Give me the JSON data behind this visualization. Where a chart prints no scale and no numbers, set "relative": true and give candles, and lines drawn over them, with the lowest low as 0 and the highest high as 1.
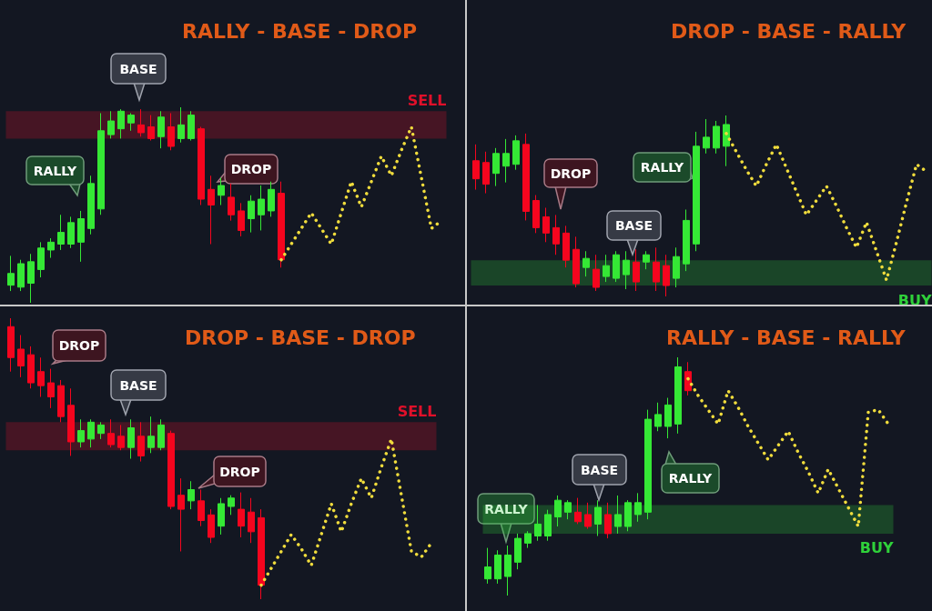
{
  "chart_data": [
    {
      "type": "candlestick",
      "relative": true,
      "title": "RALLY - BASE - DROP",
      "tick_labels": false,
      "grid": false,
      "categories": [
        null,
        null,
        null,
        null,
        null,
        null,
        null,
        null,
        null,
        null,
        null,
        null,
        null,
        null,
        null,
        null,
        null,
        null,
        null,
        null,
        null,
        null,
        null,
        null,
        null,
        null,
        null,
        null,
        null,
        null,
        null,
        null,
        null,
        null,
        null,
        null,
        null,
        null,
        null,
        null,
        null,
        null,
        null,
        null
      ],
      "ohlc": [
        [
          0.09,
          0.24,
          0.06,
          0.15
        ],
        [
          0.08,
          0.22,
          0.06,
          0.2
        ],
        [
          0.1,
          0.25,
          0,
          0.21
        ],
        [
          0.17,
          0.31,
          0.13,
          0.28
        ],
        [
          0.27,
          0.33,
          0.23,
          0.31
        ],
        [
          0.3,
          0.45,
          0.27,
          0.36
        ],
        [
          0.3,
          0.44,
          0.28,
          0.41
        ],
        [
          0.31,
          0.47,
          0.21,
          0.43
        ],
        [
          0.38,
          0.65,
          0.35,
          0.61
        ],
        [
          0.48,
          0.97,
          0.45,
          0.88
        ],
        [
          0.86,
          0.98,
          0.84,
          0.93
        ],
        [
          0.89,
          0.99,
          0.84,
          0.98
        ],
        [
          0.92,
          0.97,
          0.88,
          0.96
        ],
        [
          0.91,
          0.99,
          0.85,
          0.87
        ],
        [
          0.9,
          0.96,
          0.83,
          0.84
        ],
        [
          0.85,
          0.98,
          0.79,
          0.95
        ],
        [
          0.9,
          0.97,
          0.78,
          0.8
        ],
        [
          0.84,
          1.0,
          0.82,
          0.91
        ],
        [
          0.84,
          0.98,
          0.83,
          0.96
        ],
        [
          0.89,
          0.9,
          0.5,
          0.53
        ],
        [
          0.58,
          0.65,
          0.3,
          0.5
        ],
        [
          0.55,
          0.64,
          0.5,
          0.6
        ],
        [
          0.54,
          0.61,
          0.42,
          0.45
        ],
        [
          0.47,
          0.51,
          0.34,
          0.37
        ],
        [
          0.43,
          0.55,
          0.36,
          0.52
        ],
        [
          0.45,
          0.6,
          0.37,
          0.53
        ],
        [
          0.47,
          0.62,
          0.44,
          0.58
        ],
        [
          0.56,
          0.62,
          0.18,
          0.22
        ],
        null,
        null,
        null,
        null,
        null,
        null,
        null,
        null,
        null,
        null,
        null,
        null,
        null,
        null,
        null,
        null
      ],
      "series": [
        {
          "type": "line",
          "color": "#f0dc3c",
          "line_style": "dotted",
          "marker": "none",
          "values": [
            null,
            null,
            null,
            null,
            null,
            null,
            null,
            null,
            null,
            null,
            null,
            null,
            null,
            null,
            null,
            null,
            null,
            null,
            null,
            null,
            null,
            null,
            null,
            null,
            null,
            null,
            null,
            0.22,
            0.3,
            0.38,
            0.46,
            0.38,
            0.3,
            0.46,
            0.62,
            0.49,
            0.62,
            0.75,
            0.65,
            0.78,
            0.9,
            0.64,
            0.38,
            0.42
          ]
        }
      ],
      "bands": [
        {
          "axis": "y",
          "from": 0.84,
          "to": 0.98,
          "label": "SELL",
          "color": "#e0102a"
        }
      ],
      "annotations": [
        "RALLY",
        "BASE",
        "DROP"
      ]
    },
    {
      "type": "candlestick",
      "relative": true,
      "title": "DROP - BASE - RALLY",
      "tick_labels": false,
      "grid": false,
      "categories": [
        null,
        null,
        null,
        null,
        null,
        null,
        null,
        null,
        null,
        null,
        null,
        null,
        null,
        null,
        null,
        null,
        null,
        null,
        null,
        null,
        null,
        null,
        null,
        null,
        null,
        null,
        null,
        null,
        null,
        null,
        null,
        null,
        null,
        null,
        null,
        null,
        null,
        null,
        null,
        null,
        null,
        null,
        null,
        null,
        null,
        null
      ],
      "ohlc": [
        [
          0.75,
          0.84,
          0.59,
          0.65
        ],
        [
          0.74,
          0.8,
          0.57,
          0.62
        ],
        [
          0.68,
          0.82,
          0.61,
          0.79
        ],
        [
          0.72,
          0.87,
          0.63,
          0.79
        ],
        [
          0.73,
          0.89,
          0.7,
          0.86
        ],
        [
          0.84,
          0.9,
          0.42,
          0.47
        ],
        [
          0.53,
          0.56,
          0.35,
          0.38
        ],
        [
          0.44,
          0.49,
          0.3,
          0.35
        ],
        [
          0.38,
          0.45,
          0.23,
          0.29
        ],
        [
          0.35,
          0.39,
          0.16,
          0.2
        ],
        [
          0.26,
          0.33,
          0.05,
          0.07
        ],
        [
          0.16,
          0.25,
          0.11,
          0.21
        ],
        [
          0.15,
          0.23,
          0.03,
          0.05
        ],
        [
          0.11,
          0.23,
          0.08,
          0.17
        ],
        [
          0.1,
          0.25,
          0.08,
          0.23
        ],
        [
          0.12,
          0.25,
          0.04,
          0.2
        ],
        [
          0.19,
          0.26,
          0.03,
          0.08
        ],
        [
          0.19,
          0.25,
          0.15,
          0.23
        ],
        [
          0.19,
          0.27,
          0.03,
          0.08
        ],
        [
          0.17,
          0.23,
          0,
          0.06
        ],
        [
          0.1,
          0.27,
          0.05,
          0.22
        ],
        [
          0.18,
          0.48,
          0.14,
          0.42
        ],
        [
          0.29,
          0.91,
          0.25,
          0.83
        ],
        [
          0.82,
          0.98,
          0.79,
          0.88
        ],
        [
          0.82,
          0.97,
          0.79,
          0.94
        ],
        [
          0.83,
          1.0,
          0.72,
          0.95
        ],
        null,
        null,
        null,
        null,
        null,
        null,
        null,
        null,
        null,
        null,
        null,
        null,
        null,
        null,
        null,
        null,
        null,
        null,
        null,
        null
      ],
      "series": [
        {
          "type": "line",
          "color": "#f0dc3c",
          "line_style": "dotted",
          "marker": "none",
          "values": [
            null,
            null,
            null,
            null,
            null,
            null,
            null,
            null,
            null,
            null,
            null,
            null,
            null,
            null,
            null,
            null,
            null,
            null,
            null,
            null,
            null,
            null,
            null,
            null,
            null,
            0.9,
            0.8,
            0.7,
            0.61,
            0.73,
            0.84,
            0.71,
            0.58,
            0.45,
            0.53,
            0.61,
            0.5,
            0.38,
            0.27,
            0.41,
            0.25,
            0.09,
            0.3,
            0.52,
            0.73,
            0.69
          ]
        }
      ],
      "bands": [
        {
          "axis": "y",
          "from": 0.06,
          "to": 0.2,
          "label": "BUY",
          "color": "#2fd13a"
        }
      ],
      "annotations": [
        "DROP",
        "BASE",
        "RALLY"
      ]
    },
    {
      "type": "candlestick",
      "relative": true,
      "title": "DROP - BASE - DROP",
      "tick_labels": false,
      "grid": false,
      "categories": [
        null,
        null,
        null,
        null,
        null,
        null,
        null,
        null,
        null,
        null,
        null,
        null,
        null,
        null,
        null,
        null,
        null,
        null,
        null,
        null,
        null,
        null,
        null,
        null,
        null,
        null,
        null,
        null,
        null,
        null,
        null,
        null,
        null,
        null,
        null,
        null,
        null,
        null,
        null,
        null,
        null,
        null,
        null
      ],
      "ohlc": [
        [
          0.97,
          1.0,
          0.81,
          0.86
        ],
        [
          0.89,
          0.94,
          0.79,
          0.83
        ],
        [
          0.87,
          0.9,
          0.75,
          0.77
        ],
        [
          0.81,
          0.86,
          0.72,
          0.76
        ],
        [
          0.77,
          0.82,
          0.68,
          0.72
        ],
        [
          0.76,
          0.78,
          0.63,
          0.65
        ],
        [
          0.69,
          0.75,
          0.51,
          0.56
        ],
        [
          0.56,
          0.64,
          0.54,
          0.6
        ],
        [
          0.57,
          0.64,
          0.54,
          0.63
        ],
        [
          0.59,
          0.63,
          0.57,
          0.62
        ],
        [
          0.59,
          0.64,
          0.54,
          0.55
        ],
        [
          0.58,
          0.62,
          0.53,
          0.54
        ],
        [
          0.54,
          0.64,
          0.5,
          0.61
        ],
        [
          0.58,
          0.63,
          0.49,
          0.51
        ],
        [
          0.54,
          0.65,
          0.52,
          0.58
        ],
        [
          0.54,
          0.64,
          0.53,
          0.62
        ],
        [
          0.59,
          0.6,
          0.32,
          0.33
        ],
        [
          0.37,
          0.43,
          0.17,
          0.32
        ],
        [
          0.35,
          0.42,
          0.32,
          0.39
        ],
        [
          0.35,
          0.39,
          0.26,
          0.28
        ],
        [
          0.3,
          0.32,
          0.2,
          0.22
        ],
        [
          0.26,
          0.36,
          0.23,
          0.34
        ],
        [
          0.33,
          0.37,
          0.3,
          0.36
        ],
        [
          0.32,
          0.38,
          0.22,
          0.26
        ],
        [
          0.31,
          0.36,
          0.2,
          0.24
        ],
        [
          0.29,
          0.32,
          0,
          0.05
        ],
        null,
        null,
        null,
        null,
        null,
        null,
        null,
        null,
        null,
        null,
        null,
        null,
        null,
        null,
        null,
        null,
        null
      ],
      "series": [
        {
          "type": "line",
          "color": "#f0dc3c",
          "line_style": "dotted",
          "marker": "none",
          "values": [
            null,
            null,
            null,
            null,
            null,
            null,
            null,
            null,
            null,
            null,
            null,
            null,
            null,
            null,
            null,
            null,
            null,
            null,
            null,
            null,
            null,
            null,
            null,
            null,
            null,
            0.05,
            0.11,
            0.17,
            0.23,
            0.18,
            0.12,
            0.23,
            0.34,
            0.24,
            0.34,
            0.43,
            0.36,
            0.47,
            0.57,
            0.37,
            0.17,
            0.15,
            0.2
          ]
        }
      ],
      "bands": [
        {
          "axis": "y",
          "from": 0.53,
          "to": 0.63,
          "label": "SELL",
          "color": "#e0102a"
        }
      ],
      "annotations": [
        "DROP",
        "BASE",
        "DROP"
      ]
    },
    {
      "type": "candlestick",
      "relative": true,
      "title": "RALLY - BASE - RALLY",
      "tick_labels": false,
      "grid": false,
      "categories": [
        null,
        null,
        null,
        null,
        null,
        null,
        null,
        null,
        null,
        null,
        null,
        null,
        null,
        null,
        null,
        null,
        null,
        null,
        null,
        null,
        null,
        null,
        null,
        null,
        null,
        null,
        null,
        null,
        null,
        null,
        null,
        null,
        null,
        null,
        null,
        null,
        null,
        null,
        null,
        null,
        null
      ],
      "ohlc": [
        [
          0.07,
          0.2,
          0.05,
          0.12
        ],
        [
          0.07,
          0.19,
          0.05,
          0.17
        ],
        [
          0.08,
          0.21,
          0,
          0.17
        ],
        [
          0.14,
          0.26,
          0.11,
          0.24
        ],
        [
          0.22,
          0.27,
          0.2,
          0.26
        ],
        [
          0.25,
          0.38,
          0.23,
          0.3
        ],
        [
          0.25,
          0.36,
          0.23,
          0.34
        ],
        [
          0.33,
          0.42,
          0.29,
          0.4
        ],
        [
          0.35,
          0.4,
          0.32,
          0.39
        ],
        [
          0.35,
          0.41,
          0.3,
          0.31
        ],
        [
          0.34,
          0.39,
          0.28,
          0.29
        ],
        [
          0.3,
          0.4,
          0.25,
          0.37
        ],
        [
          0.34,
          0.39,
          0.24,
          0.26
        ],
        [
          0.29,
          0.42,
          0.26,
          0.34
        ],
        [
          0.29,
          0.4,
          0.27,
          0.39
        ],
        [
          0.34,
          0.43,
          0.31,
          0.39
        ],
        [
          0.35,
          0.78,
          0.32,
          0.74
        ],
        [
          0.71,
          0.81,
          0.69,
          0.76
        ],
        [
          0.71,
          0.83,
          0.66,
          0.8
        ],
        [
          0.72,
          1.0,
          0.68,
          0.96
        ],
        [
          0.94,
          0.98,
          0.84,
          0.86
        ],
        null,
        null,
        null,
        null,
        null,
        null,
        null,
        null,
        null,
        null,
        null,
        null,
        null,
        null,
        null,
        null,
        null,
        null,
        null,
        null
      ],
      "series": [
        {
          "type": "line",
          "color": "#f0dc3c",
          "line_style": "dotted",
          "marker": "none",
          "values": [
            null,
            null,
            null,
            null,
            null,
            null,
            null,
            null,
            null,
            null,
            null,
            null,
            null,
            null,
            null,
            null,
            null,
            null,
            null,
            null,
            0.91,
            0.84,
            0.78,
            0.72,
            0.86,
            0.79,
            0.71,
            0.64,
            0.57,
            0.63,
            0.69,
            0.6,
            0.52,
            0.43,
            0.53,
            0.45,
            0.37,
            0.29,
            0.77,
            0.78,
            0.72
          ]
        }
      ],
      "bands": [
        {
          "axis": "y",
          "from": 0.26,
          "to": 0.38,
          "label": "BUY",
          "color": "#2fd13a"
        }
      ],
      "annotations": [
        "RALLY",
        "BASE",
        "RALLY"
      ]
    }
  ]
}
